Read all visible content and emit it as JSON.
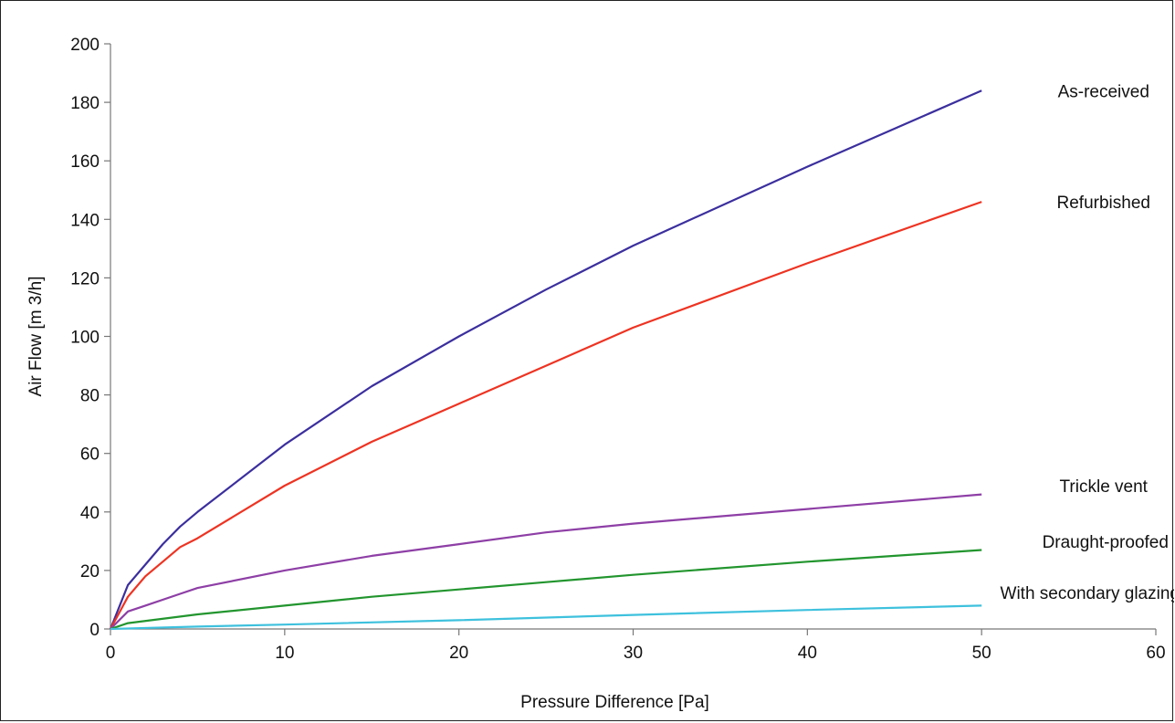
{
  "chart_data": {
    "type": "line",
    "xlabel": "Pressure Difference [Pa]",
    "ylabel": "Air Flow [m 3/h]",
    "xlim": [
      0,
      60
    ],
    "ylim": [
      0,
      200
    ],
    "x_ticks": [
      "0",
      "10",
      "20",
      "30",
      "40",
      "50",
      "60"
    ],
    "y_ticks": [
      "0",
      "20",
      "40",
      "60",
      "80",
      "100",
      "120",
      "140",
      "160",
      "180",
      "200"
    ],
    "grid": false,
    "legend": "inline labels at line ends",
    "series": [
      {
        "name": "As-received",
        "color": "#3b2f9e",
        "points": [
          [
            0,
            0
          ],
          [
            1,
            15
          ],
          [
            2,
            22
          ],
          [
            3,
            29
          ],
          [
            4,
            35
          ],
          [
            5,
            40
          ],
          [
            10,
            63
          ],
          [
            15,
            83
          ],
          [
            20,
            100
          ],
          [
            25,
            116
          ],
          [
            30,
            131
          ],
          [
            40,
            158
          ],
          [
            50,
            184
          ]
        ]
      },
      {
        "name": "Refurbished",
        "color": "#ee3322",
        "points": [
          [
            0,
            0
          ],
          [
            1,
            11
          ],
          [
            2,
            18
          ],
          [
            3,
            23
          ],
          [
            4,
            28
          ],
          [
            5,
            31
          ],
          [
            10,
            49
          ],
          [
            15,
            64
          ],
          [
            20,
            77
          ],
          [
            25,
            90
          ],
          [
            30,
            103
          ],
          [
            40,
            125
          ],
          [
            50,
            146
          ]
        ]
      },
      {
        "name": "Trickle vent",
        "color": "#8e3fa6",
        "points": [
          [
            0,
            0
          ],
          [
            1,
            6
          ],
          [
            2,
            8
          ],
          [
            4,
            12
          ],
          [
            5,
            14
          ],
          [
            10,
            20
          ],
          [
            15,
            25
          ],
          [
            20,
            29
          ],
          [
            25,
            33
          ],
          [
            30,
            36
          ],
          [
            40,
            41
          ],
          [
            50,
            46
          ]
        ]
      },
      {
        "name": "Draught-proofed",
        "color": "#22952e",
        "points": [
          [
            0,
            0
          ],
          [
            1,
            2
          ],
          [
            5,
            5
          ],
          [
            10,
            8
          ],
          [
            15,
            11
          ],
          [
            20,
            13.5
          ],
          [
            25,
            16
          ],
          [
            30,
            18.5
          ],
          [
            40,
            23
          ],
          [
            50,
            27
          ]
        ]
      },
      {
        "name": "With secondary glazing",
        "color": "#3ec1dd",
        "points": [
          [
            0,
            0
          ],
          [
            5,
            0.8
          ],
          [
            10,
            1.5
          ],
          [
            20,
            3
          ],
          [
            30,
            4.8
          ],
          [
            40,
            6.5
          ],
          [
            50,
            8
          ]
        ]
      }
    ]
  }
}
